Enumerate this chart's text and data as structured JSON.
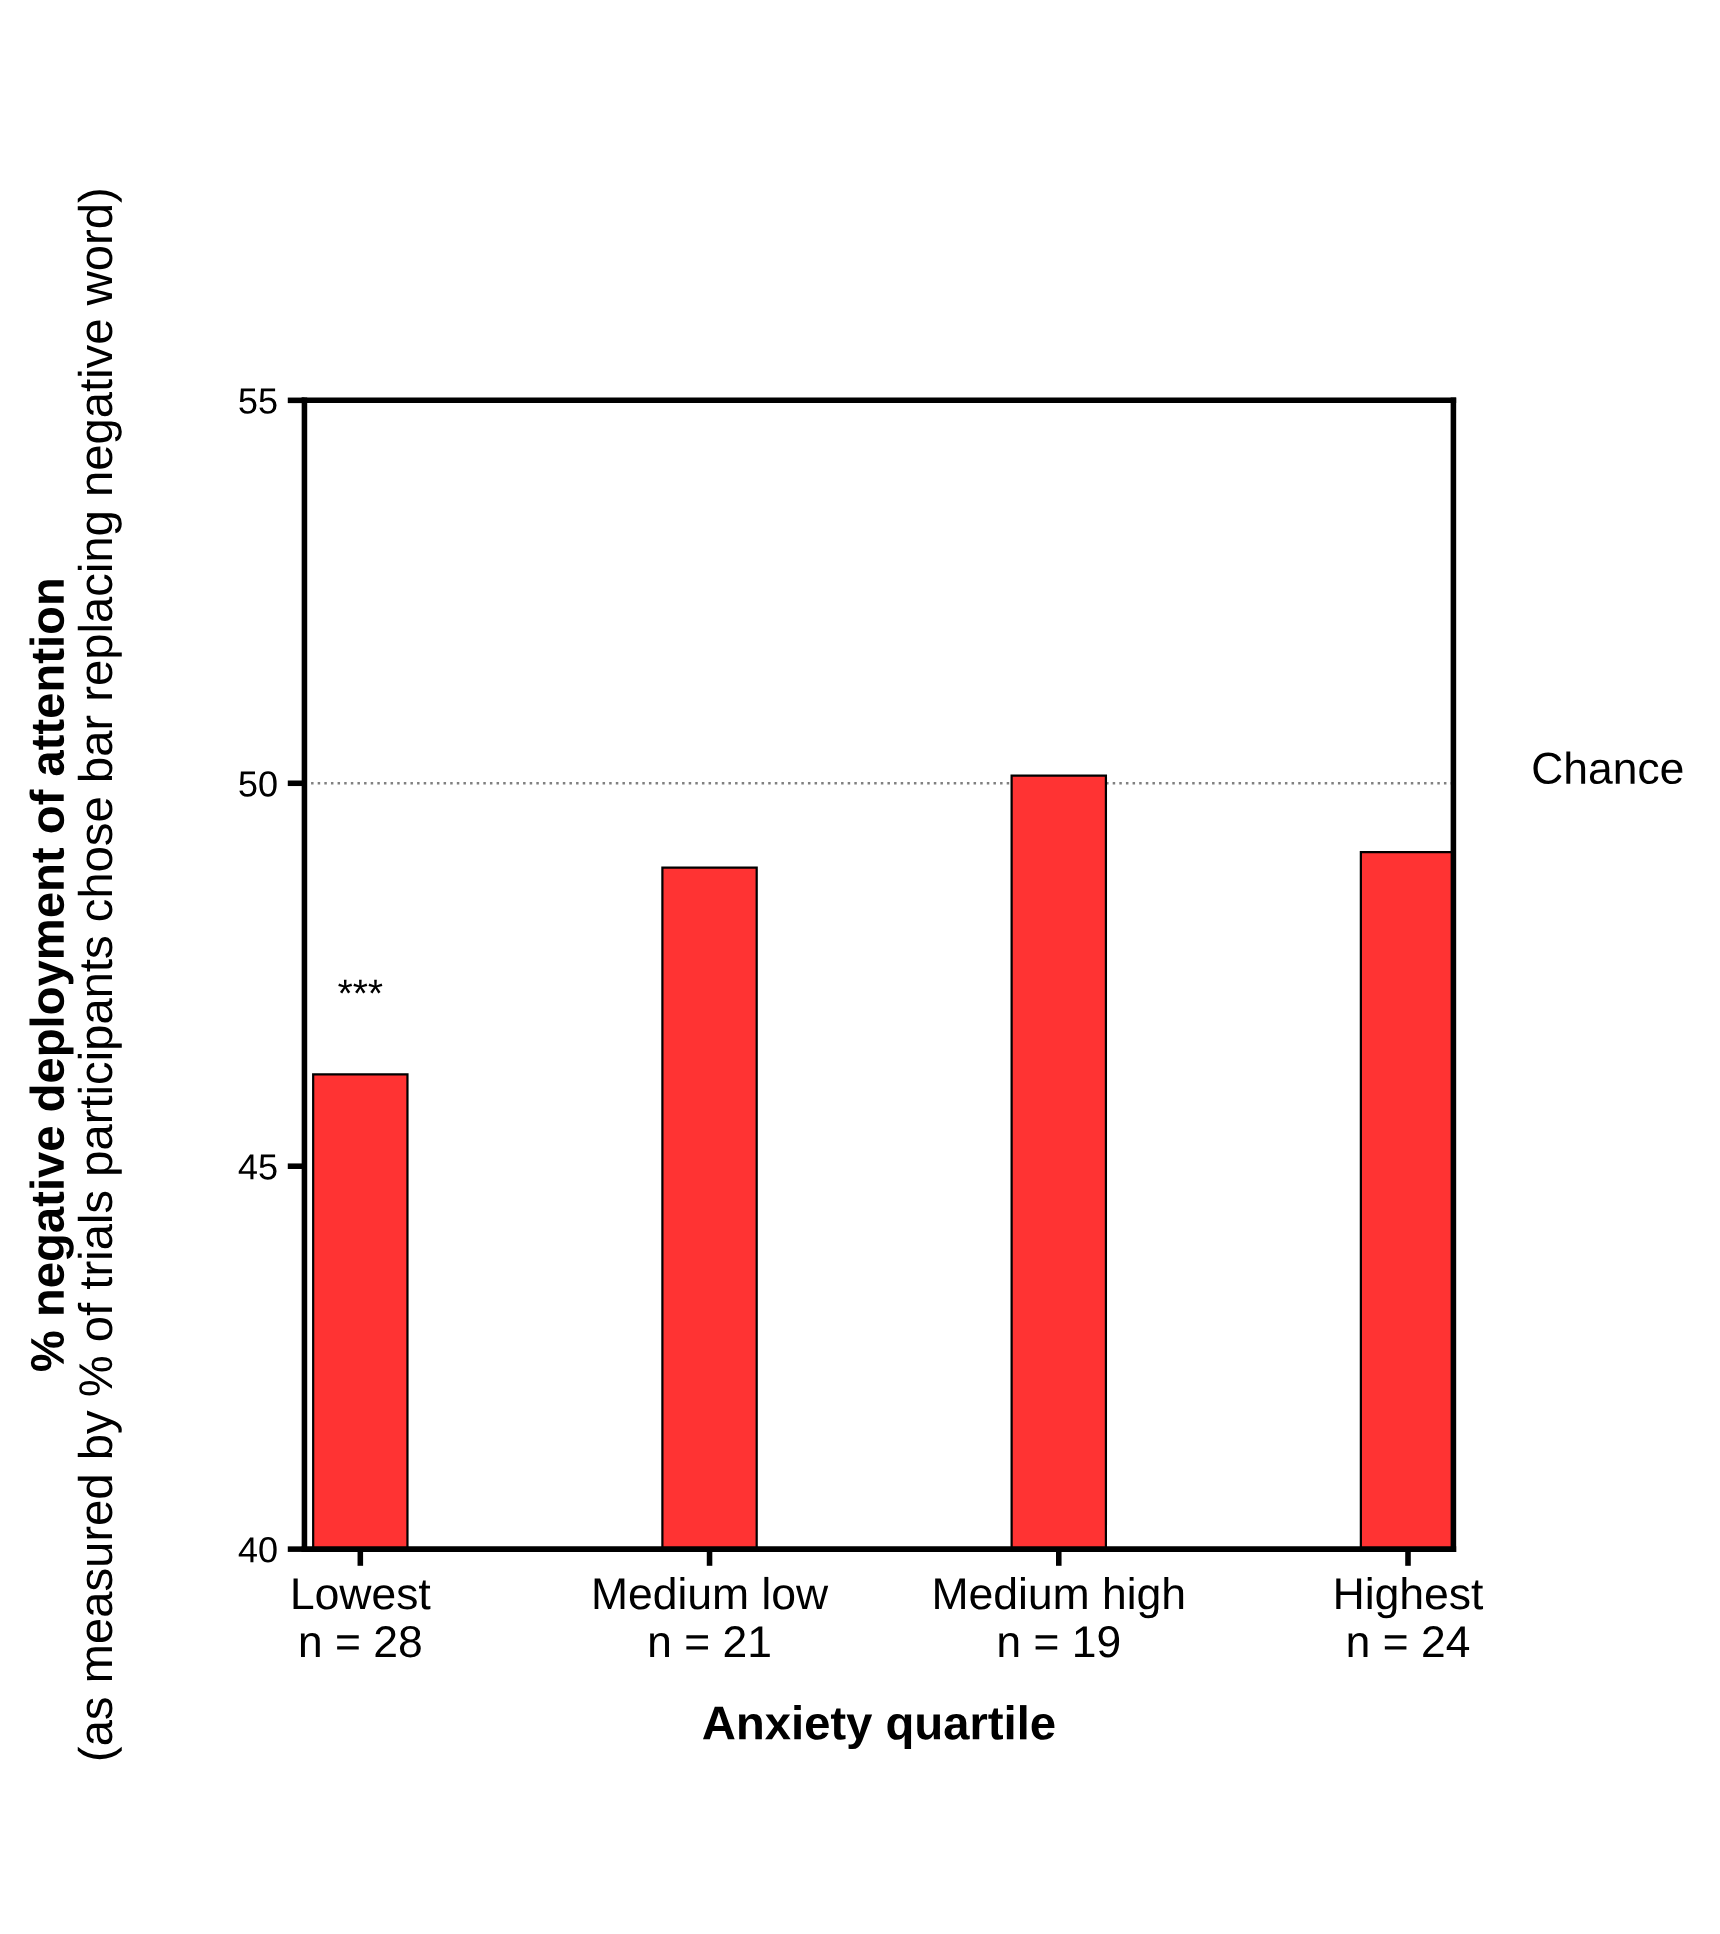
{
  "chart_data": {
    "type": "bar",
    "xlabel": "Anxiety quartile",
    "ylabel": "% negative deployment of attention\n(as measured by % of trials participants chose bar replacing negative word)",
    "categories": [
      "Lowest\nn = 28",
      "Medium low\nn = 21",
      "Medium high\nn = 19",
      "Highest\nn = 24"
    ],
    "values": [
      46.2,
      48.9,
      50.1,
      49.1
    ],
    "color": "#ff3333",
    "ylim": [
      40,
      55
    ],
    "yticks": [
      40,
      45,
      50,
      55
    ],
    "grid": false,
    "legend": false,
    "ref_lines": [
      {
        "axis": "y",
        "value": 50,
        "label": "Chance",
        "color": "#808080",
        "line_style": "dotted"
      }
    ],
    "annotations": [
      "***"
    ]
  }
}
